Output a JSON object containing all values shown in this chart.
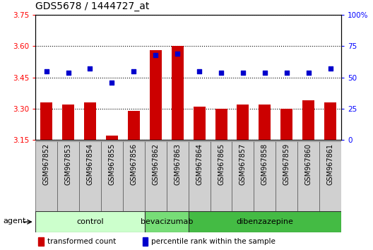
{
  "title": "GDS5678 / 1444727_at",
  "samples": [
    "GSM967852",
    "GSM967853",
    "GSM967854",
    "GSM967855",
    "GSM967856",
    "GSM967862",
    "GSM967863",
    "GSM967864",
    "GSM967865",
    "GSM967857",
    "GSM967858",
    "GSM967859",
    "GSM967860",
    "GSM967861"
  ],
  "transformed_count": [
    3.33,
    3.32,
    3.33,
    3.17,
    3.29,
    3.58,
    3.6,
    3.31,
    3.3,
    3.32,
    3.32,
    3.3,
    3.34,
    3.33
  ],
  "percentile_rank": [
    55,
    54,
    57,
    46,
    55,
    68,
    69,
    55,
    54,
    54,
    54,
    54,
    54,
    57
  ],
  "ylim_left": [
    3.15,
    3.75
  ],
  "ylim_right": [
    0,
    100
  ],
  "yticks_left": [
    3.15,
    3.3,
    3.45,
    3.6,
    3.75
  ],
  "yticks_right": [
    0,
    25,
    50,
    75,
    100
  ],
  "ytick_labels_right": [
    "0",
    "25",
    "50",
    "75",
    "100%"
  ],
  "groups": [
    {
      "label": "control",
      "start": 0,
      "end": 5,
      "color": "#ccffcc"
    },
    {
      "label": "bevacizumab",
      "start": 5,
      "end": 7,
      "color": "#77dd77"
    },
    {
      "label": "dibenzazepine",
      "start": 7,
      "end": 14,
      "color": "#44bb44"
    }
  ],
  "bar_color": "#cc0000",
  "dot_color": "#0000cc",
  "background_color": "#ffffff",
  "agent_label": "agent",
  "legend_bar_label": "transformed count",
  "legend_dot_label": "percentile rank within the sample",
  "title_fontsize": 10,
  "tick_fontsize": 7.5,
  "label_fontsize": 7,
  "group_fontsize": 8
}
